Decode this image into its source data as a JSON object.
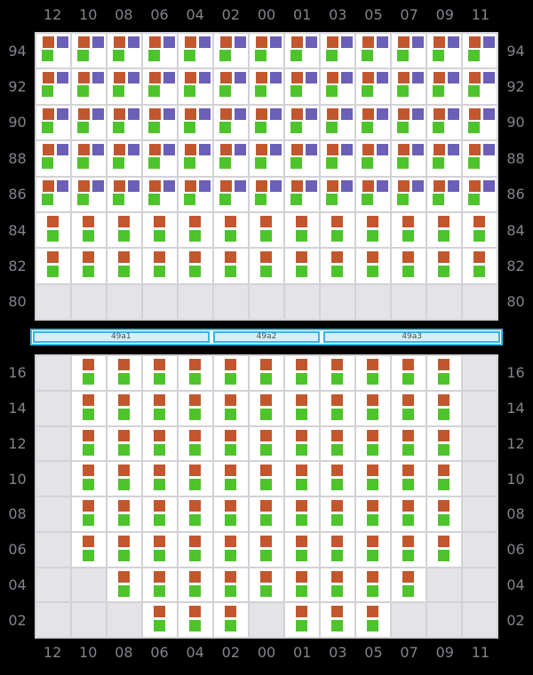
{
  "columns": [
    "12",
    "10",
    "08",
    "06",
    "04",
    "02",
    "00",
    "01",
    "03",
    "05",
    "07",
    "09",
    "11"
  ],
  "deck": {
    "tiers": [
      {
        "label": "94",
        "cells": [
          "opg",
          "opg",
          "opg",
          "opg",
          "opg",
          "opg",
          "opg",
          "opg",
          "opg",
          "opg",
          "opg",
          "opg",
          "opg"
        ]
      },
      {
        "label": "92",
        "cells": [
          "opg",
          "opg",
          "opg",
          "opg",
          "opg",
          "opg",
          "opg",
          "opg",
          "opg",
          "opg",
          "opg",
          "opg",
          "opg"
        ]
      },
      {
        "label": "90",
        "cells": [
          "opg",
          "opg",
          "opg",
          "opg",
          "opg",
          "opg",
          "opg",
          "opg",
          "opg",
          "opg",
          "opg",
          "opg",
          "opg"
        ]
      },
      {
        "label": "88",
        "cells": [
          "opg",
          "opg",
          "opg",
          "opg",
          "opg",
          "opg",
          "opg",
          "opg",
          "opg",
          "opg",
          "opg",
          "opg",
          "opg"
        ]
      },
      {
        "label": "86",
        "cells": [
          "opg",
          "opg",
          "opg",
          "opg",
          "opg",
          "opg",
          "opg",
          "opg",
          "opg",
          "opg",
          "opg",
          "opg",
          "opg"
        ]
      },
      {
        "label": "84",
        "cells": [
          "og",
          "og",
          "og",
          "og",
          "og",
          "og",
          "og",
          "og",
          "og",
          "og",
          "og",
          "og",
          "og"
        ]
      },
      {
        "label": "82",
        "cells": [
          "og",
          "og",
          "og",
          "og",
          "og",
          "og",
          "og",
          "og",
          "og",
          "og",
          "og",
          "og",
          "og"
        ]
      },
      {
        "label": "80",
        "cells": [
          "",
          "",
          "",
          "",
          "",
          "",
          "",
          "",
          "",
          "",
          "",
          "",
          ""
        ]
      }
    ]
  },
  "hatch_covers": [
    {
      "label": "49a1",
      "span": 5
    },
    {
      "label": "49a2",
      "span": 3
    },
    {
      "label": "49a3",
      "span": 5
    }
  ],
  "hold": {
    "tiers": [
      {
        "label": "16",
        "cells": [
          "",
          "og",
          "og",
          "og",
          "og",
          "og",
          "og",
          "og",
          "og",
          "og",
          "og",
          "og",
          ""
        ]
      },
      {
        "label": "14",
        "cells": [
          "",
          "og",
          "og",
          "og",
          "og",
          "og",
          "og",
          "og",
          "og",
          "og",
          "og",
          "og",
          ""
        ]
      },
      {
        "label": "12",
        "cells": [
          "",
          "og",
          "og",
          "og",
          "og",
          "og",
          "og",
          "og",
          "og",
          "og",
          "og",
          "og",
          ""
        ]
      },
      {
        "label": "10",
        "cells": [
          "",
          "og",
          "og",
          "og",
          "og",
          "og",
          "og",
          "og",
          "og",
          "og",
          "og",
          "og",
          ""
        ]
      },
      {
        "label": "08",
        "cells": [
          "",
          "og",
          "og",
          "og",
          "og",
          "og",
          "og",
          "og",
          "og",
          "og",
          "og",
          "og",
          ""
        ]
      },
      {
        "label": "06",
        "cells": [
          "",
          "og",
          "og",
          "og",
          "og",
          "og",
          "og",
          "og",
          "og",
          "og",
          "og",
          "og",
          ""
        ]
      },
      {
        "label": "04",
        "cells": [
          "",
          "",
          "og",
          "og",
          "og",
          "og",
          "og",
          "og",
          "og",
          "og",
          "og",
          "",
          ""
        ]
      },
      {
        "label": "02",
        "cells": [
          "",
          "",
          "",
          "og",
          "og",
          "og",
          "",
          "og",
          "og",
          "og",
          "",
          "",
          ""
        ]
      }
    ]
  },
  "marker_icons": {
    "o": "container-marker-orange-icon",
    "p": "container-marker-purple-icon",
    "g": "container-marker-green-icon"
  },
  "colors": {
    "background": "#000000",
    "cell": "#ffffff",
    "empty_cell": "#e4e4e7",
    "grid_line": "#d2d2d7",
    "label": "#83838b",
    "orange": "#c2572e",
    "purple": "#6b5fb7",
    "green": "#4ec42c",
    "hatch_border": "#35b5e8",
    "hatch_fill": "#dcecf7"
  }
}
